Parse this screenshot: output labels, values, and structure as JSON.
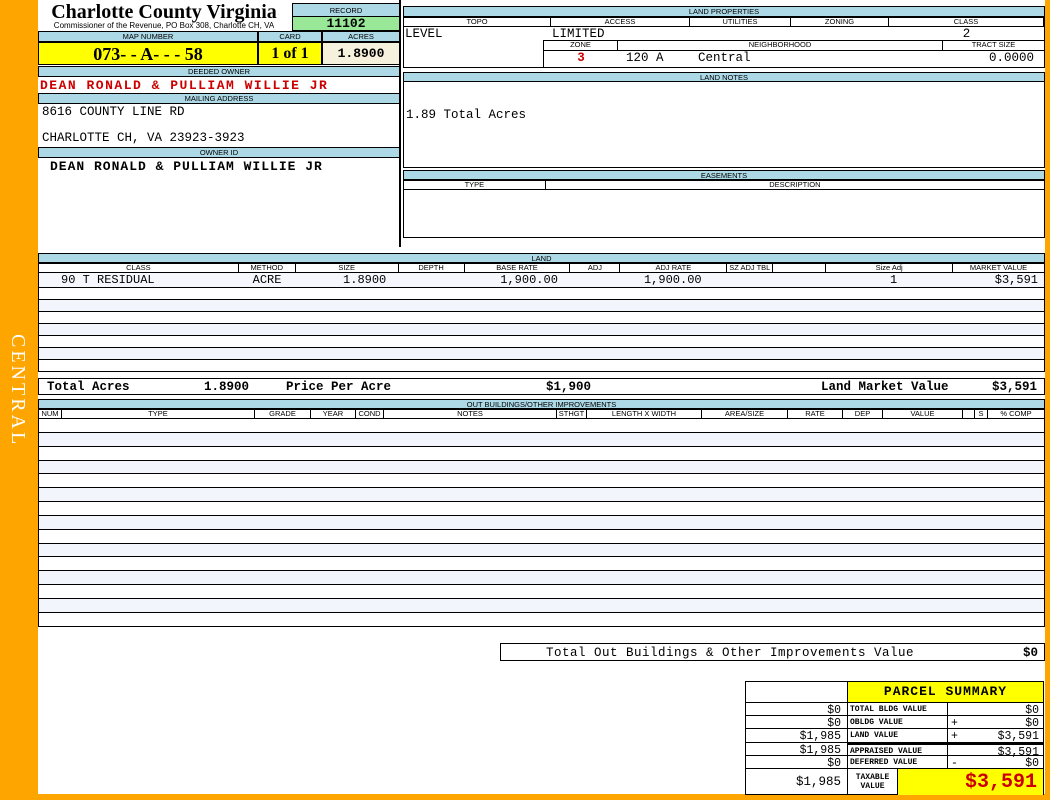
{
  "colors": {
    "orange": "#FFA500",
    "header_blue": "#ADD8E6",
    "record_green": "#98E898",
    "highlight_yellow": "#FFFF00",
    "alert_red": "#CC0000"
  },
  "sidebar": {
    "region_label": "CENTRAL"
  },
  "header": {
    "county_title": "Charlotte County Virginia",
    "county_subtitle": "Commissioner of the Revenue, PO Box 308, Charlotte CH, VA",
    "record_label": "RECORD",
    "record_value": "11102",
    "map_number_label": "MAP NUMBER",
    "map_number_value": "073- - A- - - 58",
    "card_label": "CARD",
    "card_value": "1 of 1",
    "acres_label": "ACRES",
    "acres_value": "1.8900"
  },
  "owner": {
    "deeded_owner_label": "DEEDED OWNER",
    "deeded_owner": "DEAN RONALD & PULLIAM WILLIE JR",
    "mailing_address_label": "MAILING ADDRESS",
    "address_line1": "8616 COUNTY LINE RD",
    "address_line2": "CHARLOTTE CH, VA 23923-3923",
    "owner_id_label": "OWNER ID",
    "owner_id": "DEAN RONALD & PULLIAM WILLIE JR"
  },
  "land_properties": {
    "title": "LAND PROPERTIES",
    "columns": [
      "TOPO",
      "ACCESS",
      "UTILITIES",
      "ZONING",
      "CLASS"
    ],
    "topo": "LEVEL",
    "access": "LIMITED",
    "utilities": "",
    "zoning": "",
    "class": "2",
    "zone_label": "ZONE",
    "zone": "3",
    "neighborhood_label": "NEIGHBORHOOD",
    "neighborhood_code": "120 A",
    "neighborhood_name": "Central",
    "tract_size_label": "TRACT SIZE",
    "tract_size": "0.0000"
  },
  "land_notes": {
    "title": "LAND NOTES",
    "note": "1.89 Total Acres"
  },
  "easements": {
    "title": "EASEMENTS",
    "columns": [
      "TYPE",
      "DESCRIPTION"
    ]
  },
  "land_table": {
    "title": "LAND",
    "columns": [
      "CLASS",
      "METHOD",
      "SIZE",
      "DEPTH",
      "BASE RATE",
      "ADJ",
      "ADJ RATE",
      "SZ ADJ TBL",
      "",
      "Size Adj",
      "MARKET VALUE"
    ],
    "rows": [
      [
        "90 T RESIDUAL",
        "ACRE",
        "1.8900",
        "",
        "1,900.00",
        "",
        "1,900.00",
        "",
        "",
        "1",
        "$3,591"
      ]
    ],
    "empty_row_count": 7,
    "totals": {
      "total_acres_label": "Total Acres",
      "total_acres": "1.8900",
      "price_per_acre_label": "Price Per Acre",
      "price_per_acre": "$1,900",
      "market_value_label": "Land Market Value",
      "market_value": "$3,591"
    }
  },
  "out_buildings": {
    "title": "OUT BUILDINGS/OTHER IMPROVEMENTS",
    "columns": [
      "NUM",
      "TYPE",
      "GRADE",
      "YEAR",
      "COND",
      "NOTES",
      "STHGT",
      "LENGTH X WIDTH",
      "AREA/SIZE",
      "RATE",
      "DEP",
      "VALUE",
      "",
      "S",
      "% COMP"
    ],
    "empty_row_count": 15,
    "total_label": "Total Out Buildings & Other Improvements Value",
    "total_value": "$0"
  },
  "parcel_summary": {
    "title": "PARCEL SUMMARY",
    "rows": [
      {
        "prior": "$0",
        "label": "TOTAL BLDG VALUE",
        "op": "",
        "value": "$0"
      },
      {
        "prior": "$0",
        "label": "OBLDG VALUE",
        "op": "+",
        "value": "$0"
      },
      {
        "prior": "$1,985",
        "label": "LAND VALUE",
        "op": "+",
        "value": "$3,591"
      },
      {
        "prior": "$1,985",
        "label": "APPRAISED VALUE",
        "op": "",
        "value": "$3,591"
      },
      {
        "prior": "$0",
        "label": "DEFERRED VALUE",
        "op": "-",
        "value": "$0"
      }
    ],
    "taxable": {
      "prior": "$1,985",
      "label": "TAXABLE VALUE",
      "value": "$3,591"
    }
  }
}
